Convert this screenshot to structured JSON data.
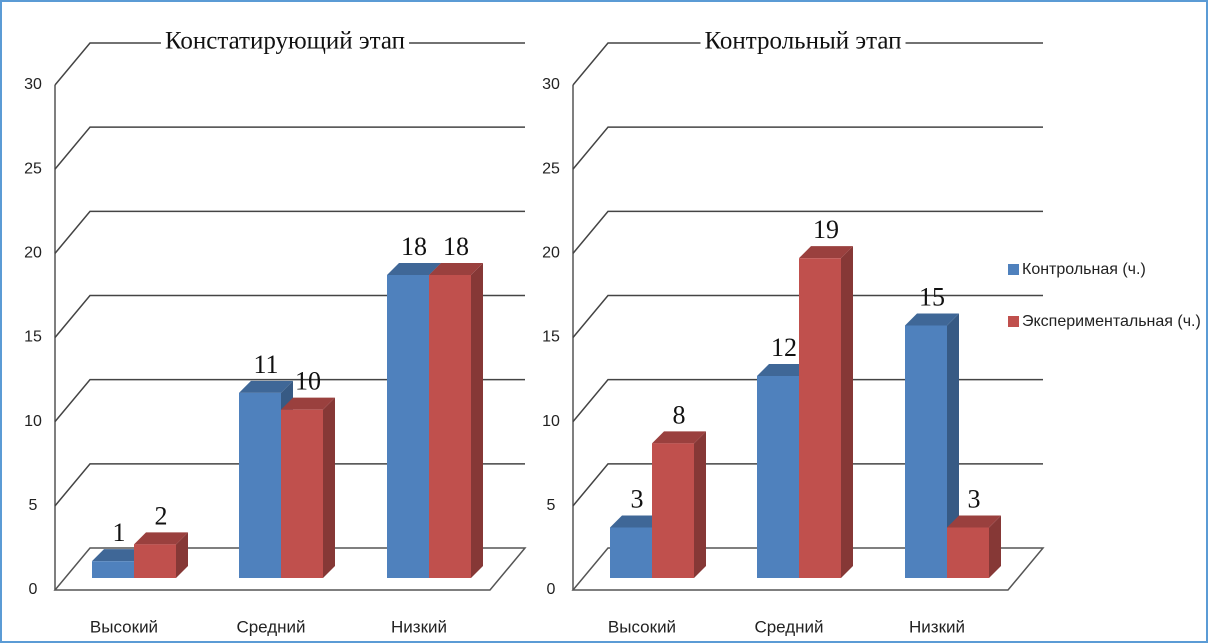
{
  "chart_data": [
    {
      "type": "bar",
      "title": "Констатирующий этап",
      "categories": [
        "Высокий",
        "Средний",
        "Низкий"
      ],
      "series": [
        {
          "color": "#4f81bd",
          "values": [
            1,
            11,
            18
          ]
        },
        {
          "color": "#c0504d",
          "values": [
            2,
            10,
            18
          ]
        }
      ],
      "ylim": [
        0,
        30
      ],
      "yticks": [
        0,
        5,
        10,
        15,
        20,
        25,
        30
      ],
      "grid": true
    },
    {
      "type": "bar",
      "title": "Контрольный этап",
      "categories": [
        "Высокий",
        "Средний",
        "Низкий"
      ],
      "series": [
        {
          "name": "Контрольная (ч.)",
          "color": "#4f81bd",
          "values": [
            3,
            12,
            15
          ]
        },
        {
          "name": "Экспериментальная (ч.)",
          "color": "#c0504d",
          "values": [
            8,
            19,
            3
          ]
        }
      ],
      "ylim": [
        0,
        30
      ],
      "yticks": [
        0,
        5,
        10,
        15,
        20,
        25,
        30
      ],
      "grid": true,
      "legend": "right"
    }
  ]
}
